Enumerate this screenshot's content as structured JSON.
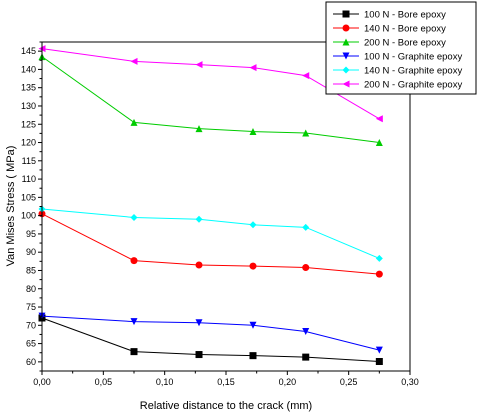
{
  "chart_data": {
    "type": "line",
    "title": "",
    "xlabel": "Relative distance to the crack (mm)",
    "ylabel": "Van Mises Stress ( MPa)",
    "xlim": [
      0.0,
      0.3
    ],
    "ylim": [
      57.5,
      147.5
    ],
    "xticks": [
      "0,00",
      "0,05",
      "0,10",
      "0,15",
      "0,20",
      "0,25",
      "0,30"
    ],
    "yticks": [
      "60",
      "65",
      "70",
      "75",
      "80",
      "85",
      "90",
      "95",
      "100",
      "105",
      "110",
      "115",
      "120",
      "125",
      "130",
      "135",
      "140",
      "145"
    ],
    "grid": false,
    "legend_position": "top-right",
    "x": [
      0.0,
      0.075,
      0.128,
      0.172,
      0.215,
      0.275
    ],
    "series": [
      {
        "name": "100 N - Bore epoxy",
        "color": "#000000",
        "marker": "square",
        "values": [
          72.0,
          62.8,
          62.0,
          61.7,
          61.3,
          60.1
        ]
      },
      {
        "name": "140 N - Bore epoxy",
        "color": "#ff0000",
        "marker": "circle",
        "values": [
          100.5,
          87.7,
          86.5,
          86.2,
          85.8,
          84.0
        ]
      },
      {
        "name": "200 N - Bore epoxy",
        "color": "#00cc00",
        "marker": "triangle-up",
        "values": [
          143.5,
          125.5,
          123.8,
          123.0,
          122.6,
          120.0
        ]
      },
      {
        "name": "100 N - Graphite epoxy",
        "color": "#0000ff",
        "marker": "triangle-down",
        "values": [
          72.5,
          71.0,
          70.7,
          70.0,
          68.3,
          63.2
        ]
      },
      {
        "name": "140 N - Graphite epoxy",
        "color": "#00ffff",
        "marker": "diamond",
        "values": [
          101.8,
          99.5,
          99.0,
          97.5,
          96.8,
          88.3
        ]
      },
      {
        "name": "200 N - Graphite epoxy",
        "color": "#ff00ff",
        "marker": "triangle-left",
        "values": [
          145.7,
          142.2,
          141.3,
          140.5,
          138.3,
          126.5
        ]
      }
    ]
  }
}
